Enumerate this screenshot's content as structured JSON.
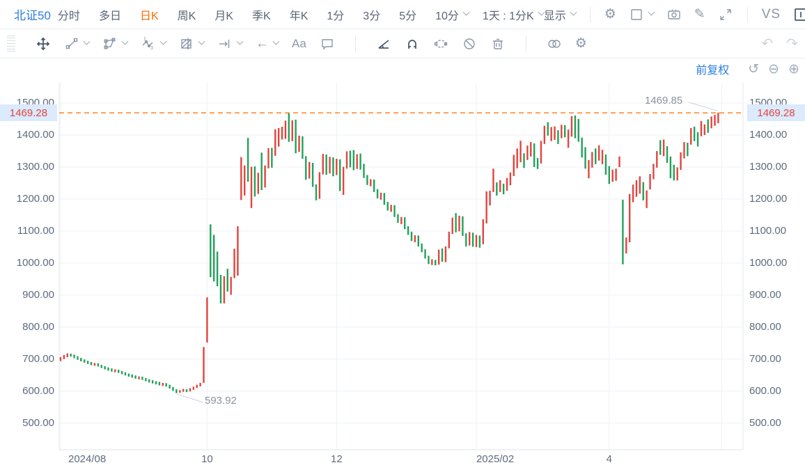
{
  "toolbar": {
    "symbol": "北证50",
    "periods": [
      "分时",
      "多日",
      "日K",
      "周K",
      "月K",
      "季K",
      "年K",
      "1分",
      "3分",
      "5分"
    ],
    "active_period": "日K",
    "minute_dropdown": "10分",
    "interval_dropdown": "1天 : 1分K",
    "display_label": "显示",
    "vs_label": "VS"
  },
  "chart_header": {
    "adjust_label": "前复权"
  },
  "chart_data": {
    "type": "candlestick",
    "title": "北证50 日K",
    "legend": [],
    "grid": true,
    "up_color": "#e2443d",
    "down_color": "#21a15a",
    "price_line_color": "#ff8021",
    "last_price": 1469.28,
    "high_annotation": "1469.85",
    "low_annotation": "593.92",
    "price_label": "1469.28",
    "y_ticks": [
      {
        "value": 1500,
        "label": "1500.00"
      },
      {
        "value": 1400,
        "label": "1400.00"
      },
      {
        "value": 1300,
        "label": "1300.00"
      },
      {
        "value": 1200,
        "label": "1200.00"
      },
      {
        "value": 1100,
        "label": "1100.00"
      },
      {
        "value": 1000,
        "label": "1000.00"
      },
      {
        "value": 900,
        "label": "900.00"
      },
      {
        "value": 800,
        "label": "800.00"
      },
      {
        "value": 700,
        "label": "700.00"
      },
      {
        "value": 600,
        "label": "600.00"
      },
      {
        "value": 500,
        "label": "500.00"
      }
    ],
    "y_axis_visible_range": [
      417,
      1563
    ],
    "x_ticks": [
      {
        "label": "2024/08",
        "index": 0,
        "align": "left",
        "dx": 11
      },
      {
        "label": "10",
        "index": 43,
        "align": "center"
      },
      {
        "label": "12",
        "index": 81,
        "align": "center"
      },
      {
        "label": "2025/02",
        "index": 122,
        "align": "left",
        "dx": 0
      },
      {
        "label": "4",
        "index": 161,
        "align": "center"
      },
      {
        "label": "",
        "index": 194,
        "align": "center"
      }
    ],
    "candles": [
      [
        699,
        706,
        694,
        703
      ],
      [
        704,
        713,
        700,
        711
      ],
      [
        712,
        718,
        706,
        716
      ],
      [
        715,
        717,
        708,
        712
      ],
      [
        711,
        714,
        703,
        707
      ],
      [
        706,
        709,
        698,
        702
      ],
      [
        701,
        704,
        693,
        697
      ],
      [
        696,
        699,
        689,
        693
      ],
      [
        692,
        695,
        685,
        689
      ],
      [
        688,
        691,
        681,
        684
      ],
      [
        683,
        688,
        679,
        686
      ],
      [
        685,
        687,
        677,
        680
      ],
      [
        679,
        682,
        672,
        676
      ],
      [
        675,
        678,
        668,
        672
      ],
      [
        671,
        674,
        664,
        668
      ],
      [
        667,
        671,
        661,
        664
      ],
      [
        663,
        668,
        659,
        666
      ],
      [
        665,
        667,
        657,
        661
      ],
      [
        660,
        663,
        653,
        657
      ],
      [
        656,
        659,
        649,
        653
      ],
      [
        652,
        655,
        645,
        650
      ],
      [
        649,
        652,
        642,
        646
      ],
      [
        645,
        649,
        639,
        643
      ],
      [
        642,
        646,
        637,
        644
      ],
      [
        643,
        645,
        635,
        639
      ],
      [
        638,
        641,
        631,
        635
      ],
      [
        634,
        637,
        627,
        632
      ],
      [
        631,
        634,
        624,
        629
      ],
      [
        628,
        631,
        621,
        626
      ],
      [
        625,
        629,
        618,
        623
      ],
      [
        622,
        626,
        616,
        624
      ],
      [
        623,
        625,
        614,
        618
      ],
      [
        617,
        620,
        608,
        612
      ],
      [
        611,
        613,
        601,
        604
      ],
      [
        603,
        606,
        593.92,
        597
      ],
      [
        596,
        603,
        595,
        601
      ],
      [
        602,
        607,
        598,
        605
      ],
      [
        604,
        606,
        597,
        600
      ],
      [
        601,
        609,
        599,
        607
      ],
      [
        608,
        614,
        604,
        612
      ],
      [
        613,
        620,
        610,
        618
      ],
      [
        619,
        626,
        615,
        624
      ],
      [
        628,
        738,
        626,
        734
      ],
      [
        756,
        893,
        752,
        889
      ],
      [
        1118,
        1121,
        956,
        966
      ],
      [
        1080,
        1088,
        943,
        951
      ],
      [
        1030,
        1036,
        928,
        934
      ],
      [
        958,
        963,
        874,
        880
      ],
      [
        878,
        959,
        874,
        954
      ],
      [
        973,
        982,
        911,
        917
      ],
      [
        903,
        957,
        901,
        953
      ],
      [
        955,
        1045,
        953,
        1041
      ],
      [
        1048,
        1115,
        961,
        1109
      ],
      [
        1200,
        1331,
        1197,
        1326
      ],
      [
        1216,
        1305,
        1211,
        1297
      ],
      [
        1382,
        1391,
        1254,
        1261
      ],
      [
        1176,
        1301,
        1172,
        1296
      ],
      [
        1296,
        1302,
        1208,
        1214
      ],
      [
        1219,
        1282,
        1216,
        1278
      ],
      [
        1341,
        1345,
        1228,
        1234
      ],
      [
        1239,
        1305,
        1236,
        1301
      ],
      [
        1299,
        1359,
        1296,
        1355
      ],
      [
        1356,
        1360,
        1298,
        1303
      ],
      [
        1338,
        1418,
        1335,
        1413
      ],
      [
        1368,
        1422,
        1364,
        1417
      ],
      [
        1390,
        1426,
        1386,
        1421
      ],
      [
        1392,
        1445,
        1388,
        1440
      ],
      [
        1455,
        1468,
        1379,
        1386
      ],
      [
        1386,
        1446,
        1381,
        1441
      ],
      [
        1441,
        1448,
        1343,
        1349
      ],
      [
        1351,
        1398,
        1347,
        1393
      ],
      [
        1391,
        1396,
        1326,
        1331
      ],
      [
        1329,
        1334,
        1260,
        1266
      ],
      [
        1268,
        1316,
        1264,
        1311
      ],
      [
        1308,
        1313,
        1238,
        1243
      ],
      [
        1241,
        1246,
        1196,
        1203
      ],
      [
        1205,
        1284,
        1201,
        1279
      ],
      [
        1281,
        1341,
        1277,
        1336
      ],
      [
        1334,
        1339,
        1276,
        1282
      ],
      [
        1284,
        1332,
        1280,
        1327
      ],
      [
        1325,
        1330,
        1271,
        1277
      ],
      [
        1279,
        1326,
        1275,
        1321
      ],
      [
        1319,
        1324,
        1225,
        1231
      ],
      [
        1218,
        1301,
        1213,
        1296
      ],
      [
        1299,
        1349,
        1295,
        1344
      ],
      [
        1346,
        1351,
        1299,
        1305
      ],
      [
        1348,
        1353,
        1290,
        1296
      ],
      [
        1298,
        1340,
        1294,
        1335
      ],
      [
        1337,
        1342,
        1292,
        1298
      ],
      [
        1300,
        1310,
        1266,
        1272
      ],
      [
        1270,
        1275,
        1244,
        1250
      ],
      [
        1248,
        1262,
        1240,
        1258
      ],
      [
        1256,
        1261,
        1222,
        1228
      ],
      [
        1226,
        1231,
        1202,
        1208
      ],
      [
        1206,
        1220,
        1198,
        1216
      ],
      [
        1214,
        1219,
        1182,
        1188
      ],
      [
        1186,
        1191,
        1164,
        1170
      ],
      [
        1168,
        1182,
        1160,
        1178
      ],
      [
        1176,
        1181,
        1144,
        1150
      ],
      [
        1148,
        1153,
        1126,
        1132
      ],
      [
        1130,
        1144,
        1122,
        1140
      ],
      [
        1138,
        1143,
        1106,
        1112
      ],
      [
        1110,
        1115,
        1088,
        1095
      ],
      [
        1093,
        1098,
        1069,
        1075
      ],
      [
        1073,
        1087,
        1065,
        1083
      ],
      [
        1081,
        1086,
        1052,
        1058
      ],
      [
        1056,
        1061,
        1034,
        1040
      ],
      [
        1038,
        1043,
        1014,
        1020
      ],
      [
        1018,
        1023,
        997,
        1003
      ],
      [
        1005,
        1012,
        994,
        1008
      ],
      [
        1006,
        1010,
        993,
        996
      ],
      [
        998,
        1042,
        995,
        1038
      ],
      [
        1040,
        1046,
        1004,
        1009
      ],
      [
        1007,
        1052,
        1003,
        1048
      ],
      [
        1050,
        1098,
        1046,
        1093
      ],
      [
        1095,
        1142,
        1091,
        1137
      ],
      [
        1139,
        1156,
        1096,
        1101
      ],
      [
        1103,
        1148,
        1099,
        1143
      ],
      [
        1141,
        1146,
        1085,
        1090
      ],
      [
        1088,
        1093,
        1052,
        1057
      ],
      [
        1059,
        1097,
        1055,
        1092
      ],
      [
        1090,
        1095,
        1051,
        1056
      ],
      [
        1054,
        1088,
        1050,
        1083
      ],
      [
        1081,
        1086,
        1048,
        1053
      ],
      [
        1062,
        1137,
        1059,
        1132
      ],
      [
        1128,
        1224,
        1124,
        1221
      ],
      [
        1183,
        1226,
        1180,
        1223
      ],
      [
        1225,
        1295,
        1222,
        1292
      ],
      [
        1247,
        1252,
        1211,
        1214
      ],
      [
        1225,
        1259,
        1222,
        1256
      ],
      [
        1243,
        1248,
        1215,
        1218
      ],
      [
        1229,
        1266,
        1226,
        1263
      ],
      [
        1246,
        1283,
        1243,
        1280
      ],
      [
        1275,
        1338,
        1272,
        1335
      ],
      [
        1299,
        1358,
        1296,
        1355
      ],
      [
        1318,
        1382,
        1315,
        1379
      ],
      [
        1338,
        1343,
        1297,
        1300
      ],
      [
        1325,
        1367,
        1322,
        1364
      ],
      [
        1336,
        1378,
        1333,
        1375
      ],
      [
        1369,
        1374,
        1300,
        1303
      ],
      [
        1323,
        1328,
        1294,
        1297
      ],
      [
        1314,
        1382,
        1311,
        1379
      ],
      [
        1375,
        1429,
        1372,
        1426
      ],
      [
        1435,
        1440,
        1398,
        1401
      ],
      [
        1384,
        1425,
        1381,
        1422
      ],
      [
        1388,
        1427,
        1385,
        1424
      ],
      [
        1410,
        1415,
        1372,
        1375
      ],
      [
        1393,
        1432,
        1390,
        1429
      ],
      [
        1426,
        1431,
        1393,
        1396
      ],
      [
        1363,
        1417,
        1360,
        1414
      ],
      [
        1398,
        1459,
        1395,
        1456
      ],
      [
        1456,
        1461,
        1390,
        1393
      ],
      [
        1445,
        1450,
        1379,
        1382
      ],
      [
        1387,
        1392,
        1330,
        1333
      ],
      [
        1357,
        1362,
        1295,
        1298
      ],
      [
        1268,
        1322,
        1265,
        1319
      ],
      [
        1301,
        1347,
        1298,
        1344
      ],
      [
        1353,
        1358,
        1309,
        1312
      ],
      [
        1323,
        1368,
        1320,
        1365
      ],
      [
        1312,
        1354,
        1309,
        1351
      ],
      [
        1334,
        1339,
        1276,
        1279
      ],
      [
        1298,
        1303,
        1247,
        1250
      ],
      [
        1257,
        1292,
        1254,
        1289
      ],
      [
        1260,
        1295,
        1257,
        1292
      ],
      [
        1303,
        1333,
        1300,
        1330
      ],
      [
        1195,
        1198,
        996,
        1004
      ],
      [
        1033,
        1080,
        1030,
        1077
      ],
      [
        1068,
        1216,
        1065,
        1212
      ],
      [
        1193,
        1245,
        1190,
        1242
      ],
      [
        1210,
        1259,
        1207,
        1256
      ],
      [
        1220,
        1271,
        1217,
        1268
      ],
      [
        1248,
        1253,
        1196,
        1199
      ],
      [
        1175,
        1227,
        1172,
        1224
      ],
      [
        1233,
        1278,
        1230,
        1275
      ],
      [
        1265,
        1310,
        1262,
        1307
      ],
      [
        1301,
        1350,
        1298,
        1347
      ],
      [
        1379,
        1384,
        1338,
        1341
      ],
      [
        1337,
        1386,
        1334,
        1383
      ],
      [
        1360,
        1365,
        1313,
        1316
      ],
      [
        1328,
        1333,
        1265,
        1268
      ],
      [
        1302,
        1307,
        1258,
        1261
      ],
      [
        1261,
        1299,
        1258,
        1296
      ],
      [
        1294,
        1346,
        1291,
        1343
      ],
      [
        1330,
        1378,
        1327,
        1375
      ],
      [
        1371,
        1376,
        1334,
        1337
      ],
      [
        1373,
        1422,
        1370,
        1419
      ],
      [
        1421,
        1426,
        1381,
        1384
      ],
      [
        1404,
        1409,
        1364,
        1367
      ],
      [
        1399,
        1444,
        1396,
        1441
      ],
      [
        1403,
        1433,
        1400,
        1430
      ],
      [
        1444,
        1449,
        1407,
        1410
      ],
      [
        1424,
        1458,
        1421,
        1455
      ],
      [
        1432,
        1463,
        1429,
        1460
      ],
      [
        1440,
        1469.85,
        1437,
        1469.28
      ]
    ]
  }
}
